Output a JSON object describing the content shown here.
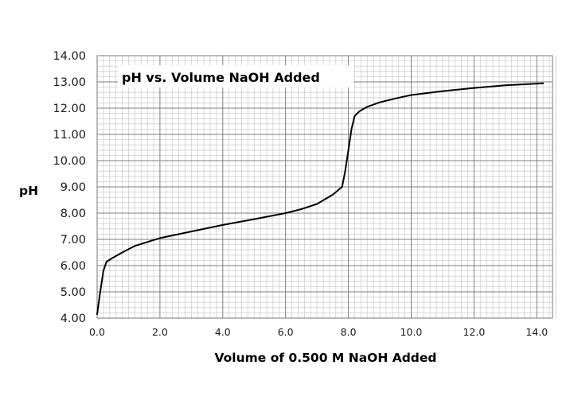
{
  "chart_data": {
    "type": "line",
    "title": "pH vs. Volume NaOH Added",
    "xlabel": "Volume of 0.500 M NaOH Added",
    "ylabel": "pH",
    "xlim": [
      0,
      14.5
    ],
    "ylim": [
      4,
      14
    ],
    "x_ticks": [
      "0.0",
      "2.0",
      "4.0",
      "6.0",
      "8.0",
      "10.0",
      "12.0",
      "14.0"
    ],
    "y_ticks": [
      "4.00",
      "5.00",
      "6.00",
      "7.00",
      "8.00",
      "9.00",
      "10.00",
      "11.00",
      "12.00",
      "13.00",
      "14.00"
    ],
    "grid": true,
    "legend": "none",
    "series": [
      {
        "color": "#000000",
        "points": [
          [
            0.0,
            4.15
          ],
          [
            0.1,
            5.0
          ],
          [
            0.2,
            5.8
          ],
          [
            0.3,
            6.15
          ],
          [
            0.5,
            6.3
          ],
          [
            0.8,
            6.5
          ],
          [
            1.2,
            6.75
          ],
          [
            1.6,
            6.9
          ],
          [
            2.0,
            7.05
          ],
          [
            3.0,
            7.3
          ],
          [
            4.0,
            7.55
          ],
          [
            5.0,
            7.77
          ],
          [
            6.0,
            8.0
          ],
          [
            6.5,
            8.15
          ],
          [
            7.0,
            8.35
          ],
          [
            7.5,
            8.7
          ],
          [
            7.8,
            9.0
          ],
          [
            7.9,
            9.6
          ],
          [
            8.0,
            10.4
          ],
          [
            8.1,
            11.2
          ],
          [
            8.2,
            11.7
          ],
          [
            8.35,
            11.88
          ],
          [
            8.6,
            12.05
          ],
          [
            9.0,
            12.22
          ],
          [
            9.5,
            12.37
          ],
          [
            10.0,
            12.5
          ],
          [
            11.0,
            12.65
          ],
          [
            12.0,
            12.77
          ],
          [
            13.0,
            12.87
          ],
          [
            14.2,
            12.95
          ]
        ]
      }
    ]
  }
}
